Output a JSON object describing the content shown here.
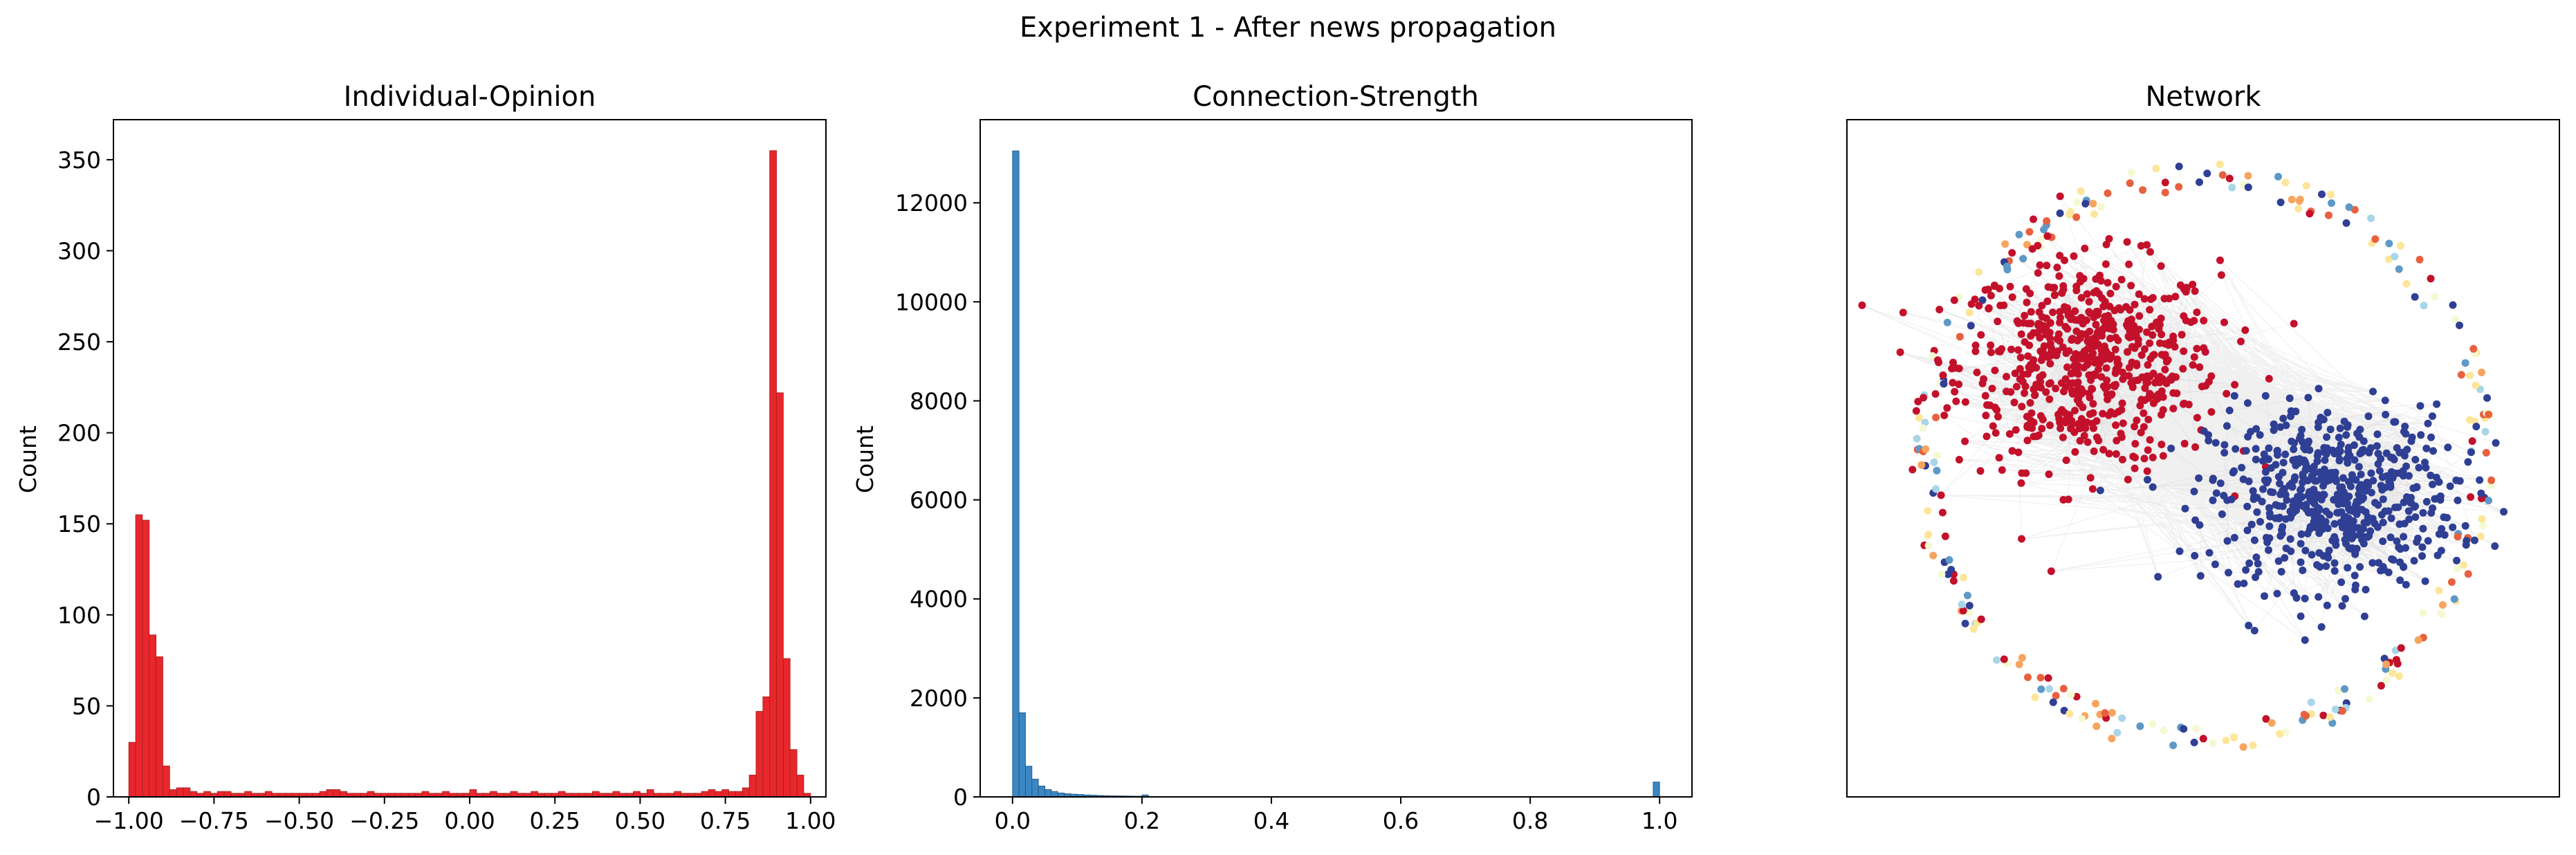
{
  "figure": {
    "title": "Experiment 1 - After news propagation"
  },
  "colors": {
    "opinion_bar": "#e8272c",
    "opinion_edge": "#a01d1f",
    "strength_bar": "#3a87c4",
    "strength_edge": "#1e4f78",
    "edge_gray": "#8a8a8a",
    "cluster_red": "#c3112b",
    "cluster_blue": "#2f3f94",
    "ring_palette": [
      "#c3112b",
      "#e8613f",
      "#f7a45e",
      "#fde69a",
      "#f4f9d2",
      "#a9d6e7",
      "#5e98c6",
      "#2f3f94"
    ]
  },
  "chart_data": [
    {
      "type": "bar",
      "title": "Individual-Opinion",
      "xlabel": "",
      "ylabel": "Count",
      "xlim": [
        -1.045,
        1.045
      ],
      "ylim": [
        0,
        372
      ],
      "xticks": [
        -1.0,
        -0.75,
        -0.5,
        -0.25,
        0.0,
        0.25,
        0.5,
        0.75,
        1.0
      ],
      "xtick_labels": [
        "−1.00",
        "−0.75",
        "−0.50",
        "−0.25",
        "0.00",
        "0.25",
        "0.50",
        "0.75",
        "1.00"
      ],
      "yticks": [
        0,
        50,
        100,
        150,
        200,
        250,
        300,
        350
      ],
      "ytick_labels": [
        "0",
        "50",
        "100",
        "150",
        "200",
        "250",
        "300",
        "350"
      ],
      "bin_range": [
        -1.0,
        1.0
      ],
      "bin_width": 0.02,
      "values": [
        30,
        155,
        152,
        89,
        77,
        17,
        4,
        5,
        5,
        3,
        2,
        3,
        2,
        3,
        3,
        2,
        2,
        3,
        2,
        2,
        3,
        2,
        2,
        2,
        2,
        2,
        2,
        2,
        3,
        4,
        4,
        3,
        2,
        2,
        2,
        3,
        2,
        2,
        2,
        2,
        2,
        2,
        2,
        3,
        2,
        2,
        3,
        2,
        2,
        2,
        4,
        2,
        2,
        3,
        2,
        2,
        3,
        2,
        2,
        3,
        2,
        2,
        2,
        3,
        2,
        2,
        2,
        2,
        3,
        2,
        2,
        3,
        2,
        2,
        3,
        2,
        4,
        2,
        2,
        2,
        3,
        2,
        2,
        2,
        3,
        4,
        3,
        4,
        3,
        3,
        5,
        12,
        47,
        55,
        355,
        222,
        76,
        26,
        12,
        2
      ],
      "grid": false,
      "legend": "none"
    },
    {
      "type": "bar",
      "title": "Connection-Strength",
      "xlabel": "",
      "ylabel": "Count",
      "xlim": [
        -0.05,
        1.05
      ],
      "ylim": [
        0,
        13680
      ],
      "xticks": [
        0.0,
        0.2,
        0.4,
        0.6,
        0.8,
        1.0
      ],
      "xtick_labels": [
        "0.0",
        "0.2",
        "0.4",
        "0.6",
        "0.8",
        "1.0"
      ],
      "yticks": [
        0,
        2000,
        4000,
        6000,
        8000,
        10000,
        12000
      ],
      "ytick_labels": [
        "0",
        "2000",
        "4000",
        "6000",
        "8000",
        "10000",
        "12000"
      ],
      "bin_range": [
        0.0,
        1.0
      ],
      "bin_width": 0.01,
      "values": [
        13050,
        1700,
        620,
        360,
        220,
        150,
        110,
        80,
        65,
        55,
        48,
        40,
        35,
        30,
        26,
        22,
        20,
        18,
        16,
        14,
        40,
        10,
        9,
        8,
        8,
        7,
        6,
        6,
        5,
        5,
        5,
        4,
        4,
        4,
        4,
        3,
        3,
        3,
        3,
        3,
        3,
        3,
        3,
        3,
        2,
        2,
        2,
        2,
        2,
        2,
        2,
        2,
        2,
        2,
        2,
        2,
        2,
        2,
        2,
        2,
        2,
        2,
        2,
        2,
        2,
        2,
        2,
        2,
        2,
        2,
        2,
        2,
        2,
        2,
        2,
        2,
        2,
        2,
        2,
        2,
        2,
        2,
        2,
        2,
        2,
        2,
        2,
        2,
        2,
        2,
        2,
        2,
        2,
        2,
        2,
        2,
        2,
        2,
        3,
        300
      ],
      "grid": false,
      "legend": "none"
    },
    {
      "type": "scatter",
      "title": "Network",
      "xlabel": "",
      "ylabel": "",
      "xlim": [
        -1.15,
        1.15
      ],
      "ylim": [
        -1.12,
        1.12
      ],
      "axes_visible": false,
      "grid": false,
      "legend": "none",
      "clusters": [
        {
          "name": "red-cluster",
          "center": [
            -0.37,
            0.31
          ],
          "spread": [
            0.21,
            0.17
          ],
          "count": 620
        },
        {
          "name": "blue-cluster",
          "center": [
            0.42,
            -0.13
          ],
          "spread": [
            0.2,
            0.15
          ],
          "count": 580
        }
      ],
      "ring": {
        "radius_x": 0.9,
        "radius_y": 0.93,
        "count": 270
      }
    }
  ]
}
